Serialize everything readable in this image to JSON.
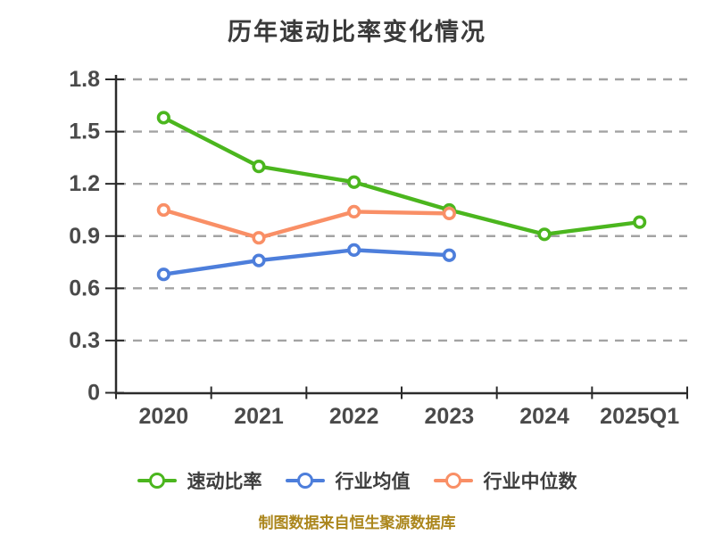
{
  "title": "历年速动比率变化情况",
  "footer": "制图数据来自恒生聚源数据库",
  "colors": {
    "quick_ratio": "#4bb61e",
    "industry_average": "#4d7edb",
    "industry_median": "#f98f66",
    "grid": "#a3a3a3",
    "axis": "#2b2b2b",
    "tick_text": "#4a4a4a",
    "title_text": "#3a3a3a",
    "legend_text": "#3e3e3e",
    "footer_text": "#ab861c"
  },
  "chart_data": {
    "type": "line",
    "title": "历年速动比率变化情况",
    "categories": [
      "2020",
      "2021",
      "2022",
      "2023",
      "2024",
      "2025Q1"
    ],
    "series": [
      {
        "key": "quick-ratio",
        "name": "速动比率",
        "color": "#4bb61e",
        "marker": "circle-open",
        "values": [
          1.58,
          1.3,
          1.21,
          1.05,
          0.91,
          0.98
        ]
      },
      {
        "key": "industry-average",
        "name": "行业均值",
        "color": "#4d7edb",
        "marker": "circle-open",
        "values": [
          0.68,
          0.76,
          0.82,
          0.79,
          null,
          null
        ]
      },
      {
        "key": "industry-median",
        "name": "行业中位数",
        "color": "#f98f66",
        "marker": "circle-open",
        "values": [
          1.05,
          0.89,
          1.04,
          1.03,
          null,
          null
        ]
      }
    ],
    "xlabel": "",
    "ylabel": "",
    "ylim": [
      0,
      1.8
    ],
    "yticks": [
      {
        "value": 0,
        "label": "0"
      },
      {
        "value": 0.3,
        "label": "0.3"
      },
      {
        "value": 0.6,
        "label": "0.6"
      },
      {
        "value": 0.9,
        "label": "0.9"
      },
      {
        "value": 1.2,
        "label": "1.2"
      },
      {
        "value": 1.5,
        "label": "1.5"
      },
      {
        "value": 1.8,
        "label": "1.8"
      }
    ],
    "grid": "horizontal-dashed",
    "legend_position": "bottom",
    "source_note": "制图数据来自恒生聚源数据库"
  }
}
